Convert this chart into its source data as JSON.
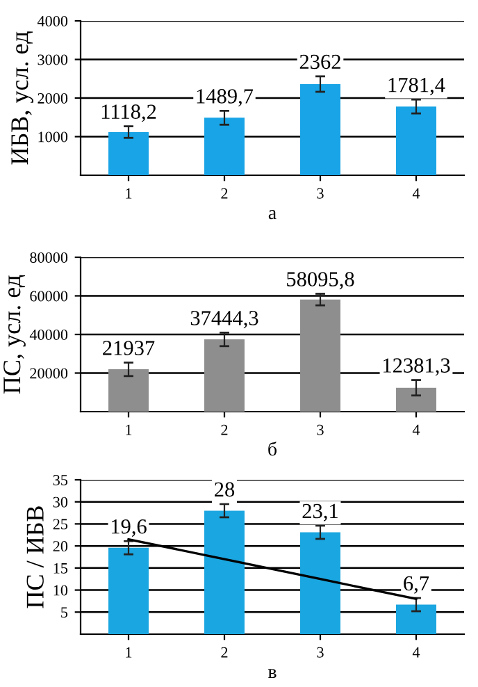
{
  "chart_data": [
    {
      "type": "bar",
      "xlabel": "а",
      "ylabel": "ИБВ, усл. ед",
      "categories": [
        "1",
        "2",
        "3",
        "4"
      ],
      "series": [
        {
          "color": "#18a4e6",
          "values": [
            1118.2,
            1489.7,
            2362,
            1781.4
          ],
          "errors": [
            150,
            180,
            200,
            180
          ],
          "value_labels": [
            "1118,2",
            "1489,7",
            "2362",
            "1781,4"
          ]
        }
      ],
      "ylim": [
        0,
        4000
      ],
      "yticks": [
        1000,
        2000,
        3000,
        4000
      ],
      "grid": "y"
    },
    {
      "type": "bar",
      "xlabel": "б",
      "ylabel": "ПС, усл. ед",
      "categories": [
        "1",
        "2",
        "3",
        "4"
      ],
      "series": [
        {
          "color": "#8e8e8e",
          "values": [
            21937,
            37444.3,
            58095.8,
            12381.3
          ],
          "errors": [
            3500,
            3500,
            3000,
            4000
          ],
          "value_labels": [
            "21937",
            "37444,3",
            "58095,8",
            "12381,3"
          ]
        }
      ],
      "ylim": [
        0,
        80000
      ],
      "yticks": [
        20000,
        40000,
        60000,
        80000
      ],
      "grid": "y"
    },
    {
      "type": "bar",
      "xlabel": "в",
      "ylabel": "ПС / ИБВ",
      "categories": [
        "1",
        "2",
        "3",
        "4"
      ],
      "series": [
        {
          "color": "#1aa6e0",
          "values": [
            19.6,
            28,
            23.1,
            6.7
          ],
          "errors": [
            1.5,
            1.5,
            1.5,
            1.5
          ],
          "value_labels": [
            "19,6",
            "28",
            "23,1",
            "6,7"
          ]
        },
        {
          "type": "line",
          "color": "#000000",
          "values": [
            21.5,
            17,
            12.5,
            8
          ]
        }
      ],
      "ylim": [
        0,
        35
      ],
      "yticks": [
        5,
        10,
        15,
        20,
        25,
        30,
        35
      ],
      "grid": "y"
    }
  ]
}
